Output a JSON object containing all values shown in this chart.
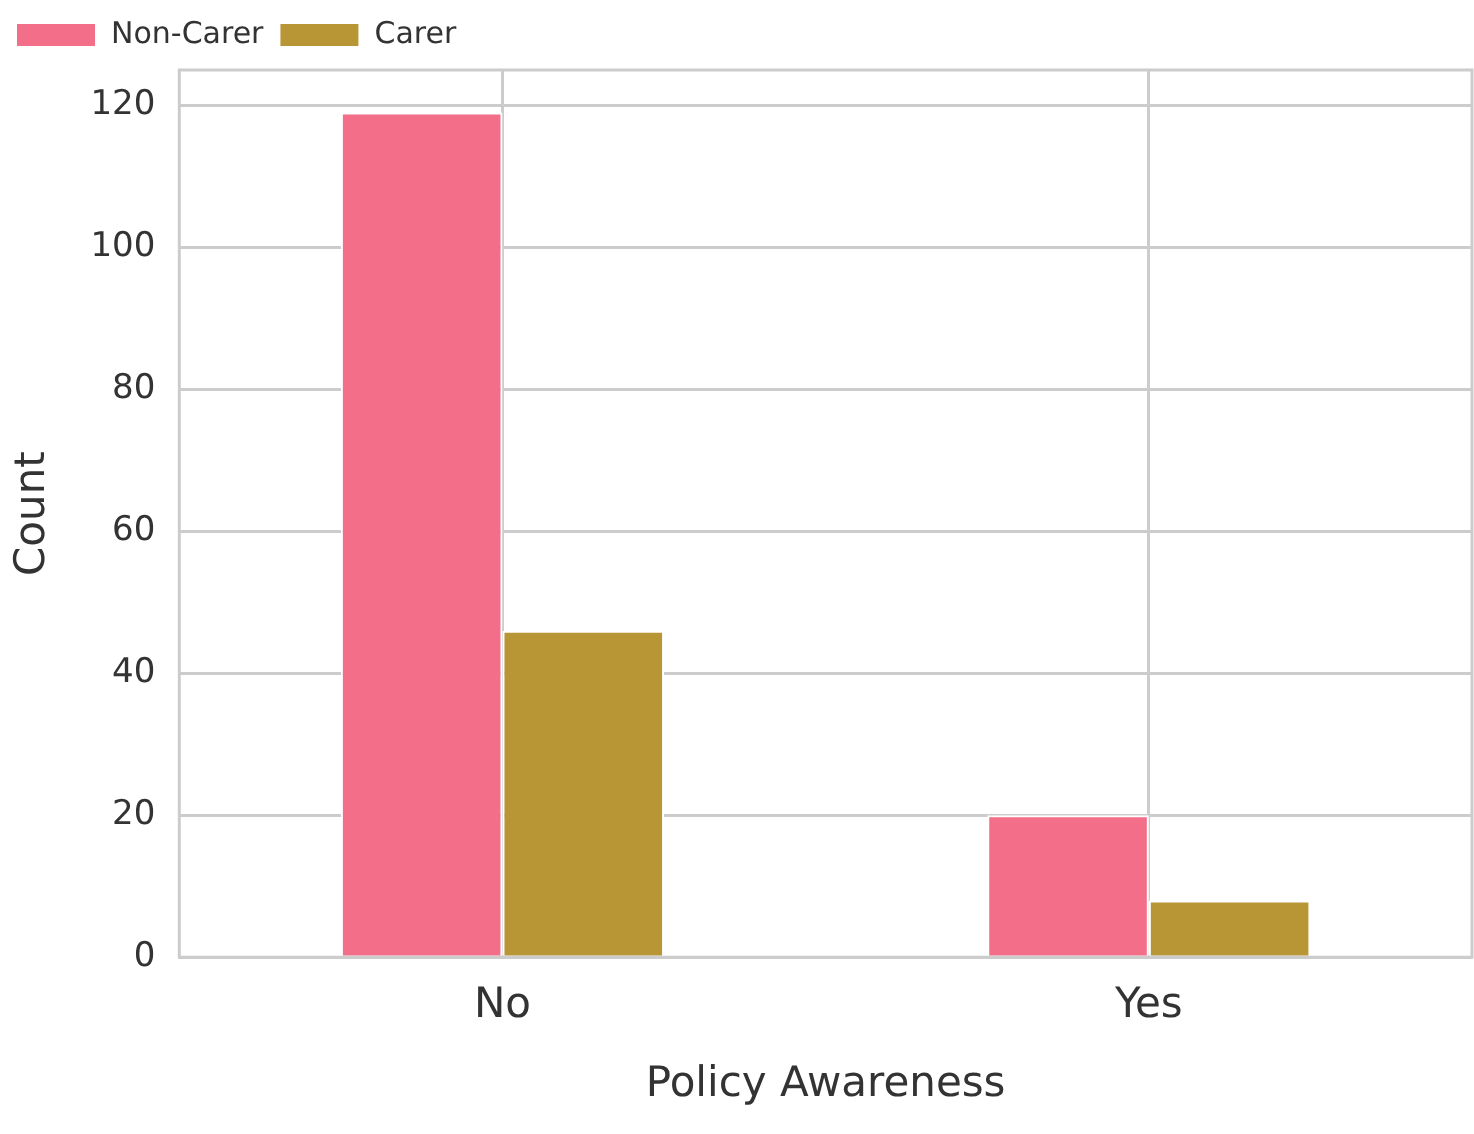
{
  "chart_data": {
    "type": "bar",
    "xlabel": "Policy Awareness",
    "ylabel": "Count",
    "categories": [
      "No",
      "Yes"
    ],
    "series": [
      {
        "name": "Non-Carer",
        "color": "#f36e88",
        "values": [
          119,
          20
        ]
      },
      {
        "name": "Carer",
        "color": "#b89535",
        "values": [
          46,
          8
        ]
      }
    ],
    "ylim": [
      0,
      125
    ],
    "yticks": [
      0,
      20,
      40,
      60,
      80,
      100,
      120
    ],
    "grid": true,
    "legend": "top left"
  }
}
